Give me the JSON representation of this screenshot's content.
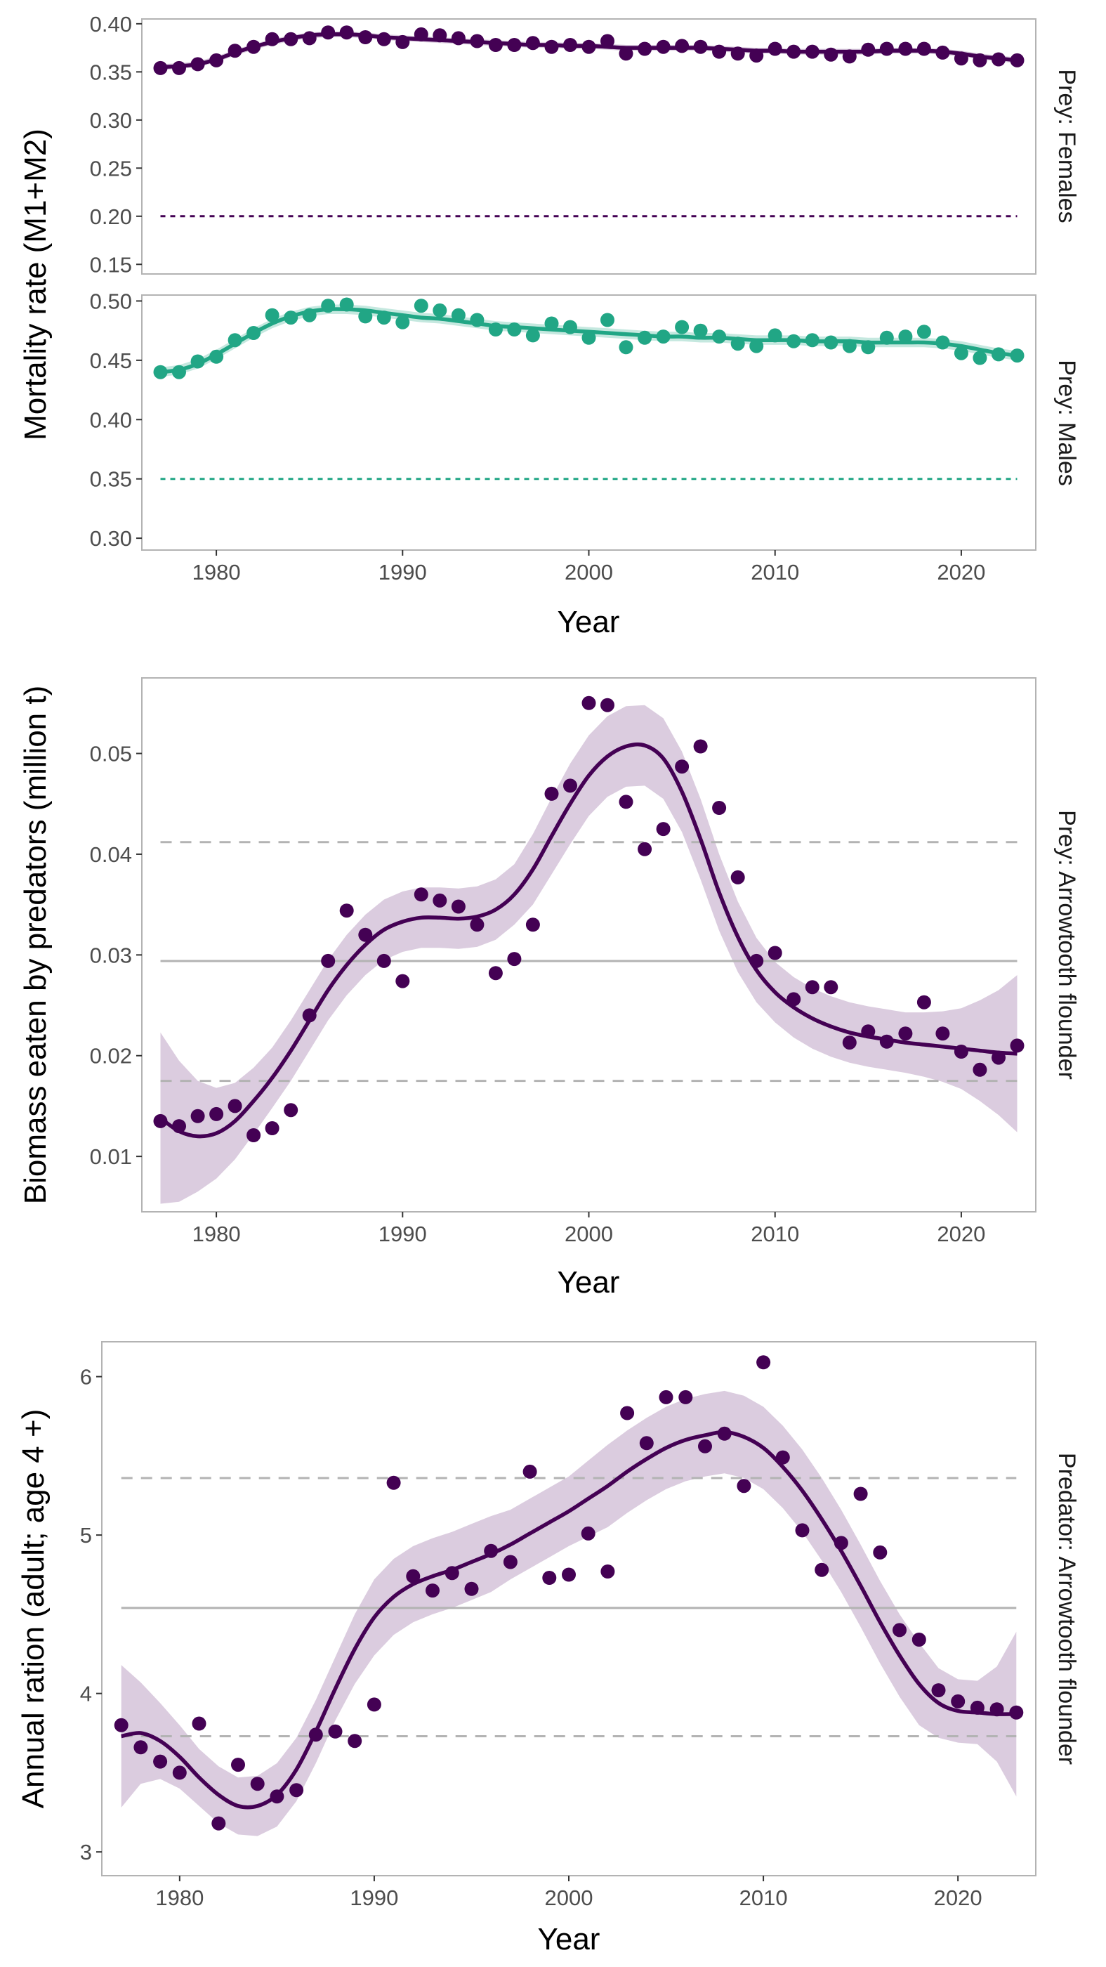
{
  "colors": {
    "purple": "#440154",
    "teal": "#21A685",
    "ribbon_purple": "#d7c6dc",
    "ref_grey": "#b3b3b3"
  },
  "chart_data": [
    {
      "type": "scatter",
      "facet_layout": "vertical",
      "ylabel": "Mortality rate (M1+M2)",
      "xlabel": "Year",
      "xlim": [
        1976,
        2024
      ],
      "x_ticks": [
        1980,
        1990,
        2000,
        2010,
        2020
      ],
      "smoother": true,
      "panels": [
        {
          "strip": "Prey: Females",
          "color": "#440154",
          "ylim": [
            0.14,
            0.405
          ],
          "y_ticks": [
            0.15,
            0.2,
            0.25,
            0.3,
            0.35,
            0.4
          ],
          "y_tick_labels": [
            "0.15",
            "0.20",
            "0.25",
            "0.30",
            "0.35",
            "0.40"
          ],
          "reference_lines": [
            {
              "y": 0.2,
              "style": "dotted"
            }
          ],
          "x": [
            1977,
            1978,
            1979,
            1980,
            1981,
            1982,
            1983,
            1984,
            1985,
            1986,
            1987,
            1988,
            1989,
            1990,
            1991,
            1992,
            1993,
            1994,
            1995,
            1996,
            1997,
            1998,
            1999,
            2000,
            2001,
            2002,
            2003,
            2004,
            2005,
            2006,
            2007,
            2008,
            2009,
            2010,
            2011,
            2012,
            2013,
            2014,
            2015,
            2016,
            2017,
            2018,
            2019,
            2020,
            2021,
            2022,
            2023
          ],
          "y": [
            0.354,
            0.354,
            0.358,
            0.362,
            0.372,
            0.376,
            0.384,
            0.384,
            0.385,
            0.391,
            0.391,
            0.386,
            0.384,
            0.381,
            0.389,
            0.388,
            0.385,
            0.382,
            0.378,
            0.378,
            0.38,
            0.376,
            0.378,
            0.376,
            0.382,
            0.369,
            0.374,
            0.376,
            0.377,
            0.376,
            0.371,
            0.369,
            0.367,
            0.374,
            0.371,
            0.371,
            0.368,
            0.366,
            0.373,
            0.374,
            0.374,
            0.374,
            0.37,
            0.364,
            0.362,
            0.363,
            0.362
          ],
          "smooth_y": [
            0.355,
            0.356,
            0.358,
            0.363,
            0.37,
            0.376,
            0.381,
            0.385,
            0.388,
            0.389,
            0.389,
            0.388,
            0.386,
            0.385,
            0.384,
            0.383,
            0.382,
            0.381,
            0.38,
            0.379,
            0.378,
            0.378,
            0.377,
            0.377,
            0.376,
            0.375,
            0.375,
            0.375,
            0.375,
            0.375,
            0.374,
            0.373,
            0.372,
            0.372,
            0.371,
            0.371,
            0.371,
            0.371,
            0.371,
            0.372,
            0.372,
            0.372,
            0.371,
            0.369,
            0.366,
            0.364,
            0.362
          ],
          "band_halfwidth": 0.003
        },
        {
          "strip": "Prey: Males",
          "color": "#21A685",
          "ylim": [
            0.29,
            0.505
          ],
          "y_ticks": [
            0.3,
            0.35,
            0.4,
            0.45,
            0.5
          ],
          "y_tick_labels": [
            "0.30",
            "0.35",
            "0.40",
            "0.45",
            "0.50"
          ],
          "reference_lines": [
            {
              "y": 0.35,
              "style": "dotted"
            }
          ],
          "x": [
            1977,
            1978,
            1979,
            1980,
            1981,
            1982,
            1983,
            1984,
            1985,
            1986,
            1987,
            1988,
            1989,
            1990,
            1991,
            1992,
            1993,
            1994,
            1995,
            1996,
            1997,
            1998,
            1999,
            2000,
            2001,
            2002,
            2003,
            2004,
            2005,
            2006,
            2007,
            2008,
            2009,
            2010,
            2011,
            2012,
            2013,
            2014,
            2015,
            2016,
            2017,
            2018,
            2019,
            2020,
            2021,
            2022,
            2023
          ],
          "y": [
            0.44,
            0.44,
            0.449,
            0.453,
            0.467,
            0.473,
            0.488,
            0.486,
            0.488,
            0.496,
            0.497,
            0.487,
            0.486,
            0.482,
            0.496,
            0.492,
            0.488,
            0.484,
            0.476,
            0.476,
            0.471,
            0.481,
            0.478,
            0.469,
            0.484,
            0.461,
            0.469,
            0.47,
            0.478,
            0.475,
            0.47,
            0.464,
            0.462,
            0.471,
            0.466,
            0.467,
            0.465,
            0.462,
            0.461,
            0.469,
            0.47,
            0.474,
            0.465,
            0.456,
            0.452,
            0.455,
            0.454
          ],
          "smooth_y": [
            0.44,
            0.442,
            0.447,
            0.455,
            0.464,
            0.473,
            0.481,
            0.487,
            0.491,
            0.493,
            0.493,
            0.492,
            0.49,
            0.488,
            0.486,
            0.485,
            0.483,
            0.481,
            0.479,
            0.478,
            0.477,
            0.476,
            0.475,
            0.474,
            0.473,
            0.472,
            0.471,
            0.47,
            0.47,
            0.469,
            0.469,
            0.468,
            0.467,
            0.467,
            0.467,
            0.466,
            0.466,
            0.466,
            0.465,
            0.465,
            0.465,
            0.465,
            0.464,
            0.462,
            0.459,
            0.456,
            0.454
          ],
          "band_halfwidth": 0.004
        }
      ]
    },
    {
      "type": "scatter",
      "ylabel": "Biomass eaten by predators (million t)",
      "xlabel": "Year",
      "strip": "Prey: Arrowtooth flounder",
      "color": "#440154",
      "xlim": [
        1976,
        2024
      ],
      "x_ticks": [
        1980,
        1990,
        2000,
        2010,
        2020
      ],
      "ylim": [
        0.0045,
        0.0575
      ],
      "y_ticks": [
        0.01,
        0.02,
        0.03,
        0.04,
        0.05
      ],
      "y_tick_labels": [
        "0.01",
        "0.02",
        "0.03",
        "0.04",
        "0.05"
      ],
      "reference_lines": [
        {
          "y": 0.0294,
          "style": "solid"
        },
        {
          "y": 0.0412,
          "style": "dashed"
        },
        {
          "y": 0.0175,
          "style": "dashed"
        }
      ],
      "x": [
        1977,
        1978,
        1979,
        1980,
        1981,
        1982,
        1983,
        1984,
        1985,
        1986,
        1987,
        1988,
        1989,
        1990,
        1991,
        1992,
        1993,
        1994,
        1995,
        1996,
        1997,
        1998,
        1999,
        2000,
        2001,
        2002,
        2003,
        2004,
        2005,
        2006,
        2007,
        2008,
        2009,
        2010,
        2011,
        2012,
        2013,
        2014,
        2015,
        2016,
        2017,
        2018,
        2019,
        2020,
        2021,
        2022,
        2023
      ],
      "y": [
        0.0135,
        0.013,
        0.014,
        0.0142,
        0.015,
        0.0121,
        0.0128,
        0.0146,
        0.024,
        0.0294,
        0.0344,
        0.032,
        0.0294,
        0.0274,
        0.036,
        0.0354,
        0.0348,
        0.033,
        0.0282,
        0.0296,
        0.033,
        0.046,
        0.0468,
        0.055,
        0.0548,
        0.0452,
        0.0405,
        0.0425,
        0.0487,
        0.0507,
        0.0446,
        0.0377,
        0.0294,
        0.0302,
        0.0256,
        0.0268,
        0.0268,
        0.0213,
        0.0224,
        0.0214,
        0.0222,
        0.0253,
        0.0222,
        0.0204,
        0.0186,
        0.0198,
        0.021
      ],
      "smooth_y": [
        0.0138,
        0.0125,
        0.012,
        0.0123,
        0.0135,
        0.0155,
        0.0178,
        0.0205,
        0.0235,
        0.0265,
        0.029,
        0.031,
        0.0325,
        0.0333,
        0.0337,
        0.0337,
        0.0336,
        0.0338,
        0.0345,
        0.036,
        0.0385,
        0.0418,
        0.045,
        0.0478,
        0.0497,
        0.0507,
        0.0508,
        0.0495,
        0.0462,
        0.0415,
        0.0362,
        0.0318,
        0.0285,
        0.0263,
        0.0248,
        0.0237,
        0.0229,
        0.0223,
        0.0219,
        0.0216,
        0.0213,
        0.0211,
        0.0209,
        0.0207,
        0.0205,
        0.0203,
        0.0202
      ],
      "band_halfwidth": [
        0.0085,
        0.007,
        0.0055,
        0.0045,
        0.0038,
        0.0033,
        0.003,
        0.003,
        0.003,
        0.003,
        0.003,
        0.003,
        0.003,
        0.003,
        0.003,
        0.003,
        0.003,
        0.003,
        0.003,
        0.003,
        0.0035,
        0.0038,
        0.004,
        0.004,
        0.004,
        0.004,
        0.004,
        0.004,
        0.004,
        0.004,
        0.0038,
        0.0035,
        0.0032,
        0.003,
        0.003,
        0.003,
        0.003,
        0.003,
        0.003,
        0.003,
        0.003,
        0.0032,
        0.0035,
        0.004,
        0.005,
        0.0062,
        0.0078
      ]
    },
    {
      "type": "scatter",
      "ylabel": "Annual ration (adult; age 4 +)",
      "xlabel": "Year",
      "strip": "Predator: Arrowtooth flounder",
      "color": "#440154",
      "xlim": [
        1976,
        2024
      ],
      "x_ticks": [
        1980,
        1990,
        2000,
        2010,
        2020
      ],
      "ylim": [
        2.85,
        6.22
      ],
      "y_ticks": [
        3,
        4,
        5,
        6
      ],
      "y_tick_labels": [
        "3",
        "4",
        "5",
        "6"
      ],
      "reference_lines": [
        {
          "y": 4.54,
          "style": "solid"
        },
        {
          "y": 5.36,
          "style": "dashed"
        },
        {
          "y": 3.73,
          "style": "dashed"
        }
      ],
      "x": [
        1977,
        1978,
        1979,
        1980,
        1981,
        1982,
        1983,
        1984,
        1985,
        1986,
        1987,
        1988,
        1989,
        1990,
        1991,
        1992,
        1993,
        1994,
        1995,
        1996,
        1997,
        1998,
        1999,
        2000,
        2001,
        2002,
        2003,
        2004,
        2005,
        2006,
        2007,
        2008,
        2009,
        2010,
        2011,
        2012,
        2013,
        2014,
        2015,
        2016,
        2017,
        2018,
        2019,
        2020,
        2021,
        2022,
        2023
      ],
      "y": [
        3.8,
        3.66,
        3.57,
        3.5,
        3.81,
        3.18,
        3.55,
        3.43,
        3.35,
        3.39,
        3.74,
        3.76,
        3.7,
        3.93,
        5.33,
        4.74,
        4.65,
        4.76,
        4.66,
        4.9,
        4.83,
        5.4,
        4.73,
        4.75,
        5.01,
        4.77,
        5.77,
        5.58,
        5.87,
        5.87,
        5.56,
        5.64,
        5.31,
        6.09,
        5.49,
        5.03,
        4.78,
        4.95,
        5.26,
        4.89,
        4.4,
        4.34,
        4.02,
        3.95,
        3.91,
        3.9,
        3.88
      ],
      "smooth_y": [
        3.73,
        3.75,
        3.7,
        3.6,
        3.47,
        3.36,
        3.29,
        3.29,
        3.36,
        3.52,
        3.76,
        4.03,
        4.28,
        4.48,
        4.61,
        4.69,
        4.74,
        4.78,
        4.83,
        4.88,
        4.94,
        5.01,
        5.08,
        5.15,
        5.23,
        5.31,
        5.4,
        5.48,
        5.55,
        5.6,
        5.63,
        5.65,
        5.62,
        5.55,
        5.43,
        5.28,
        5.1,
        4.9,
        4.68,
        4.45,
        4.24,
        4.06,
        3.94,
        3.89,
        3.88,
        3.87,
        3.87
      ],
      "band_halfwidth": [
        0.45,
        0.32,
        0.24,
        0.2,
        0.18,
        0.18,
        0.18,
        0.19,
        0.2,
        0.2,
        0.2,
        0.2,
        0.22,
        0.24,
        0.24,
        0.24,
        0.24,
        0.24,
        0.24,
        0.24,
        0.22,
        0.22,
        0.22,
        0.22,
        0.24,
        0.26,
        0.26,
        0.26,
        0.26,
        0.26,
        0.26,
        0.26,
        0.26,
        0.26,
        0.26,
        0.26,
        0.26,
        0.26,
        0.26,
        0.26,
        0.26,
        0.26,
        0.22,
        0.2,
        0.2,
        0.3,
        0.52
      ]
    }
  ]
}
